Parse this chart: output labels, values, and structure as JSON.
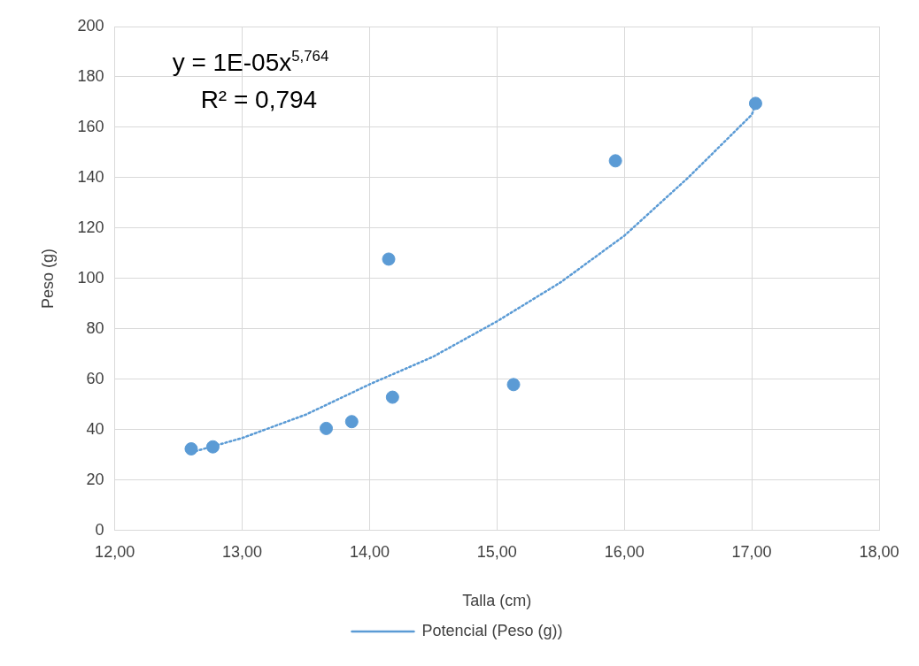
{
  "chart_data": {
    "type": "scatter",
    "xlabel": "Talla (cm)",
    "ylabel": "Peso (g)",
    "xlim": [
      12,
      18
    ],
    "xticks": [
      {
        "value": 12,
        "label": "12,00"
      },
      {
        "value": 13,
        "label": "13,00"
      },
      {
        "value": 14,
        "label": "14,00"
      },
      {
        "value": 15,
        "label": "15,00"
      },
      {
        "value": 16,
        "label": "16,00"
      },
      {
        "value": 17,
        "label": "17,00"
      },
      {
        "value": 18,
        "label": "18,00"
      }
    ],
    "ylim": [
      0,
      200
    ],
    "yticks": [
      0,
      20,
      40,
      60,
      80,
      100,
      120,
      140,
      160,
      180,
      200
    ],
    "grid": true,
    "legend": "bottom",
    "annotations": [
      "y = 1E-05x$^{5,764}$",
      "R² = 0,794"
    ],
    "series": [
      {
        "type": "scatter",
        "color": "#5b9bd5",
        "marker": "circle",
        "x": [
          12.6,
          12.77,
          13.66,
          13.86,
          14.15,
          14.18,
          15.13,
          15.93,
          17.03
        ],
        "values": [
          32.4,
          33.2,
          40.5,
          43.2,
          107.7,
          52.9,
          57.9,
          146.7,
          169.5
        ]
      },
      {
        "type": "line",
        "name": "Potencial (Peso (g))",
        "color": "#5b9bd5",
        "line_style": "dotted",
        "marker": "none",
        "x": [
          12.6,
          13,
          13.5,
          14,
          14.5,
          15,
          15.5,
          16,
          16.5,
          17,
          17.03
        ],
        "values": [
          31,
          36.7,
          46,
          58,
          69,
          83,
          98.5,
          117,
          140,
          165,
          169
        ]
      }
    ]
  }
}
